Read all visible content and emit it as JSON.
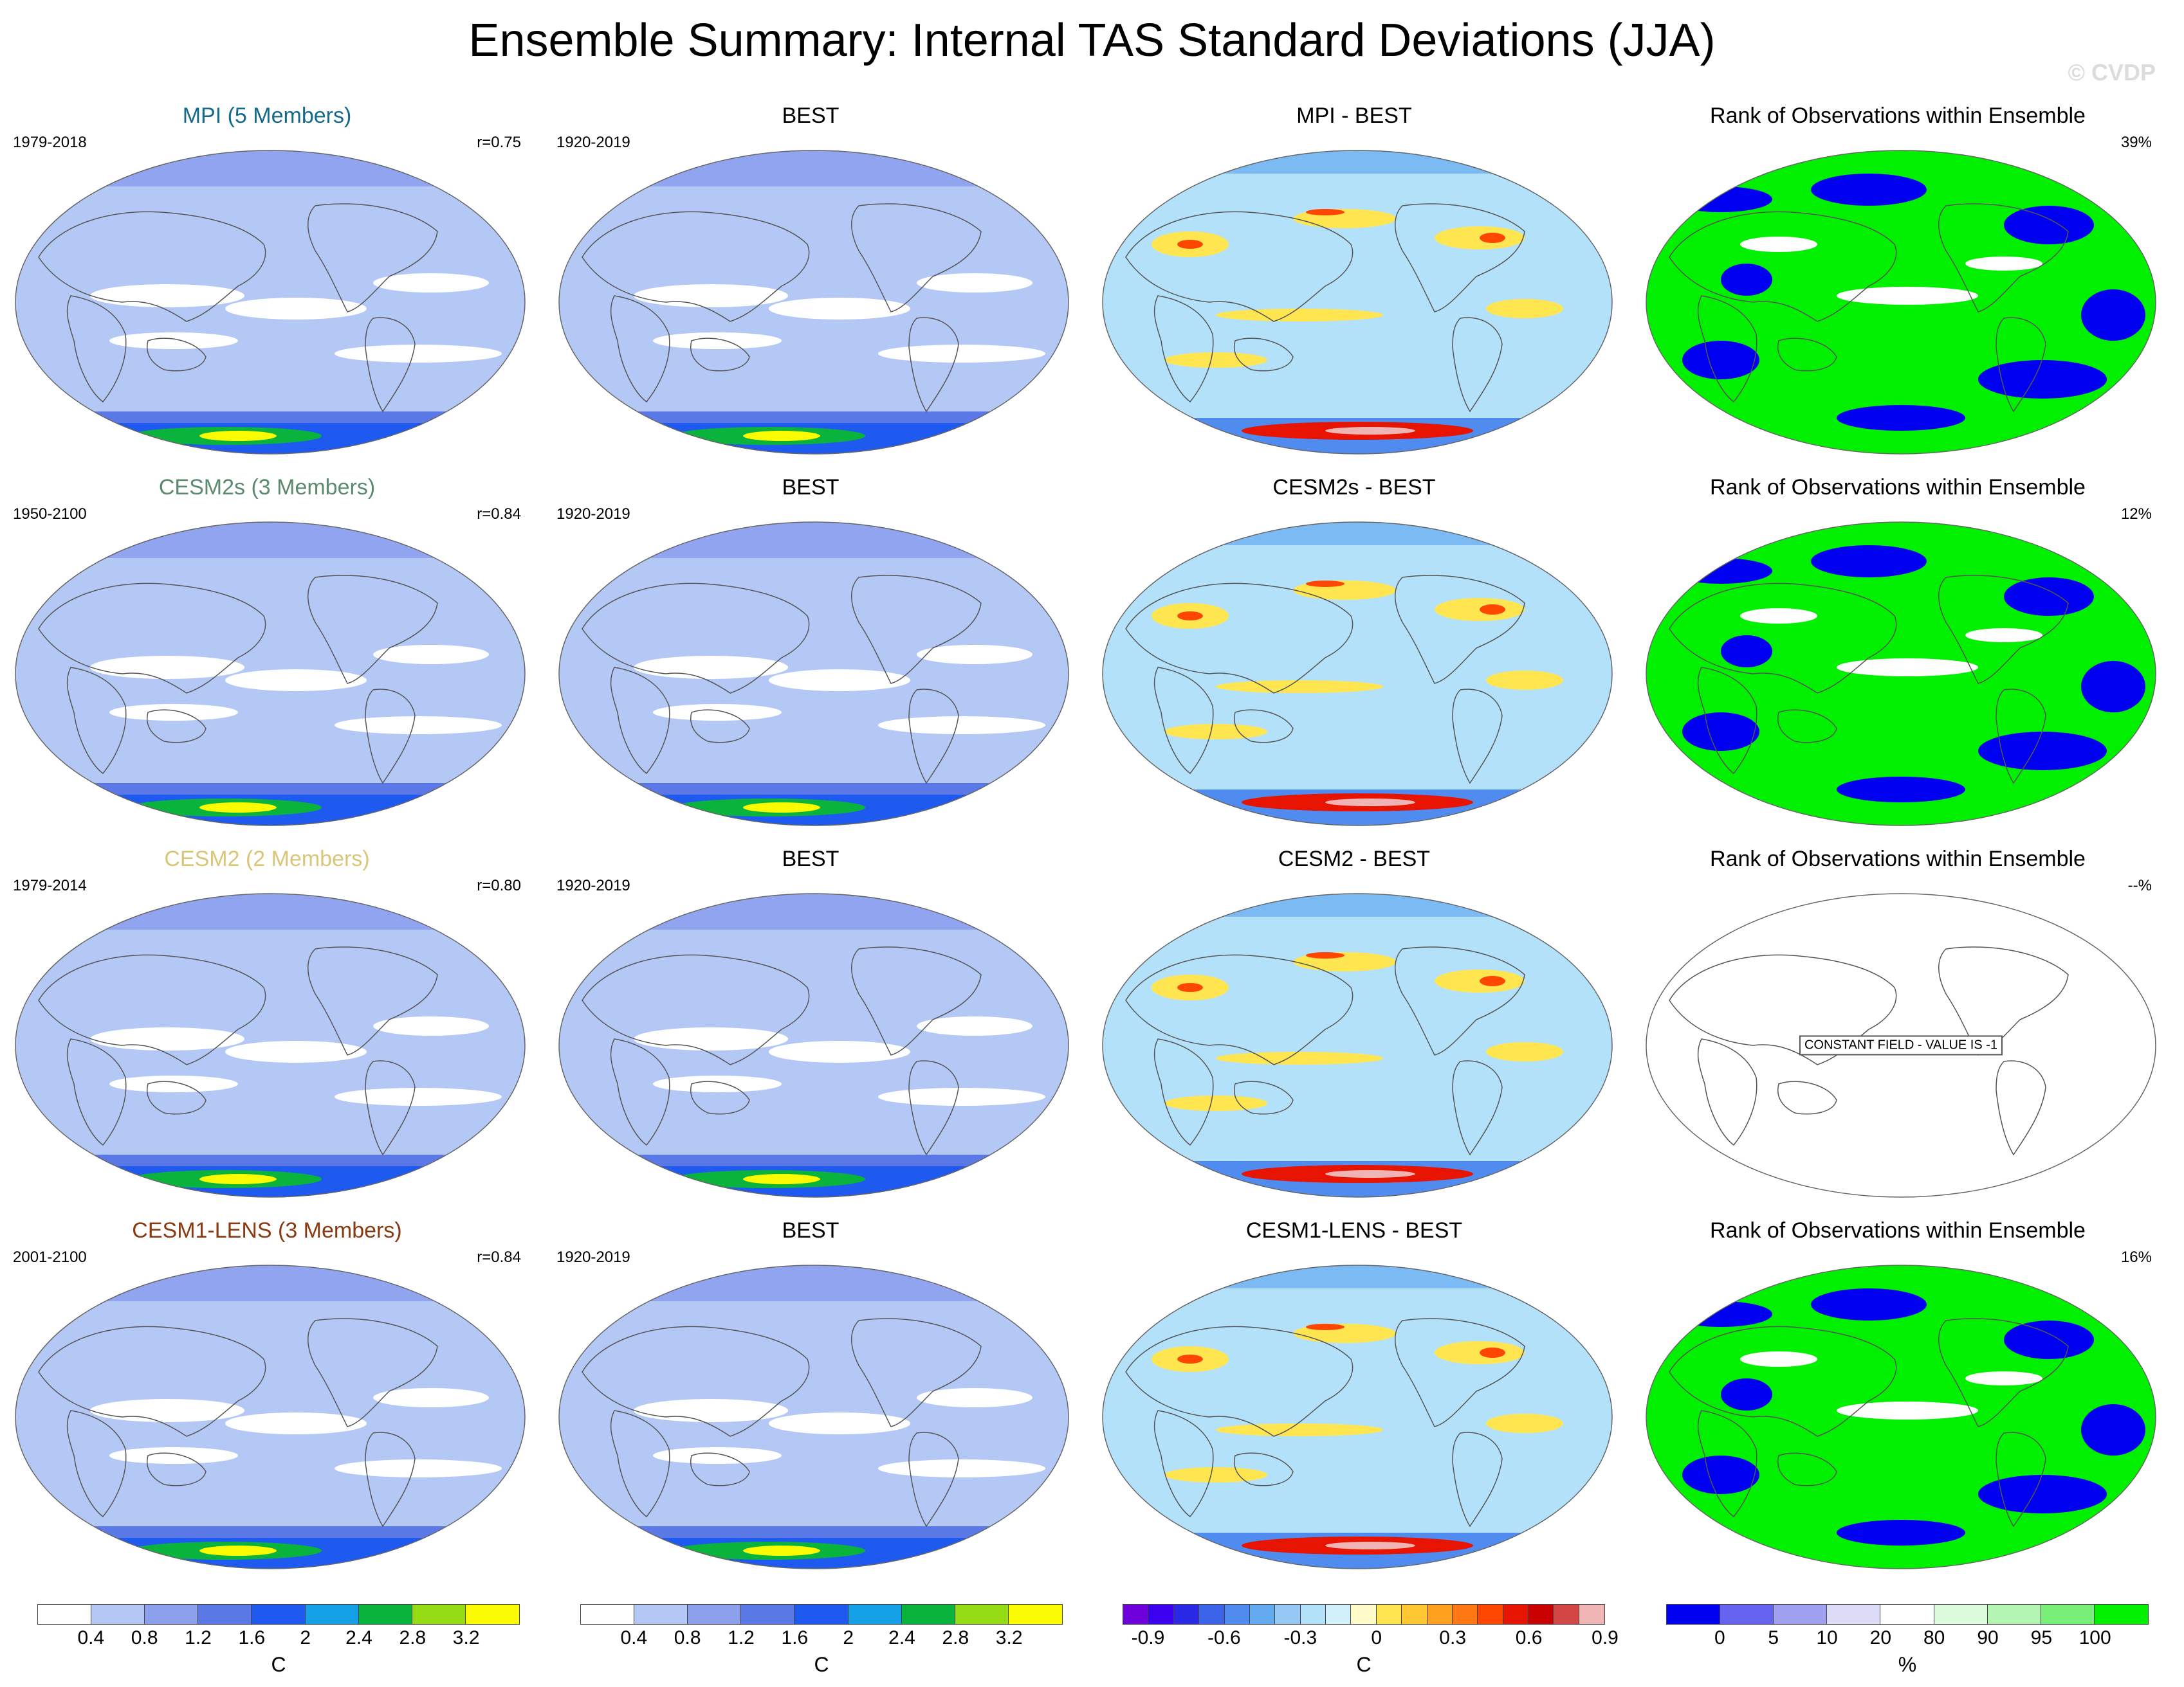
{
  "title": "Ensemble Summary: Internal TAS Standard Deviations (JJA)",
  "watermark": "© CVDP",
  "colors": {
    "std_scale": [
      "#ffffff",
      "#b4c8f5",
      "#8ca0ee",
      "#5a78e6",
      "#1e5af0",
      "#14a0e6",
      "#0ab43c",
      "#96dc14",
      "#fafa00",
      "#ffc814",
      "#ff8c00",
      "#ff2800"
    ],
    "diff_scale": [
      "#6e00dc",
      "#3c00f0",
      "#2828e6",
      "#3c64eb",
      "#508cf0",
      "#64aaf0",
      "#96c8f5",
      "#b4e1fa",
      "#d2f0fa",
      "#fffac8",
      "#ffe650",
      "#ffc832",
      "#ffa01e",
      "#ff7814",
      "#ff4600",
      "#e61400",
      "#c80000",
      "#d24646",
      "#f0b4b4"
    ],
    "rank_scale": [
      "#0000f0",
      "#6464f0",
      "#a0a0f0",
      "#dcdcf8",
      "#ffffff",
      "#dcfadc",
      "#b4f5b4",
      "#78f078",
      "#00f000"
    ]
  },
  "rows": [
    {
      "ens": {
        "title": "MPI (5 Members)",
        "title_color": "#136a8b",
        "years": "1979-2018",
        "r": "r=0.75"
      },
      "obs": {
        "title": "BEST",
        "years": "1920-2019"
      },
      "diff": {
        "title": "MPI - BEST"
      },
      "rank": {
        "title": "Rank of Observations within Ensemble",
        "pct": "39%"
      }
    },
    {
      "ens": {
        "title": "CESM2s (3 Members)",
        "title_color": "#5b8a6e",
        "years": "1950-2100",
        "r": "r=0.84"
      },
      "obs": {
        "title": "BEST",
        "years": "1920-2019"
      },
      "diff": {
        "title": "CESM2s - BEST"
      },
      "rank": {
        "title": "Rank of Observations within Ensemble",
        "pct": "12%"
      }
    },
    {
      "ens": {
        "title": "CESM2 (2 Members)",
        "title_color": "#d9c679",
        "years": "1979-2014",
        "r": "r=0.80"
      },
      "obs": {
        "title": "BEST",
        "years": "1920-2019"
      },
      "diff": {
        "title": "CESM2 - BEST"
      },
      "rank": {
        "title": "Rank of Observations within Ensemble",
        "pct": "--%",
        "constant_note": "CONSTANT FIELD - VALUE IS -1"
      }
    },
    {
      "ens": {
        "title": "CESM1-LENS (3 Members)",
        "title_color": "#8a3a10",
        "years": "2001-2100",
        "r": "r=0.84"
      },
      "obs": {
        "title": "BEST",
        "years": "1920-2019"
      },
      "diff": {
        "title": "CESM1-LENS - BEST"
      },
      "rank": {
        "title": "Rank of Observations within Ensemble",
        "pct": "16%"
      }
    }
  ],
  "colorbars": {
    "std1": {
      "ticks": [
        "0.4",
        "0.8",
        "1.2",
        "1.6",
        "2",
        "2.4",
        "2.8",
        "3.2"
      ],
      "unit": "C"
    },
    "std2": {
      "ticks": [
        "0.4",
        "0.8",
        "1.2",
        "1.6",
        "2",
        "2.4",
        "2.8",
        "3.2"
      ],
      "unit": "C"
    },
    "diff": {
      "ticks": [
        "-0.9",
        "-0.6",
        "-0.3",
        "0",
        "0.3",
        "0.6",
        "0.9"
      ],
      "unit": "C"
    },
    "rank": {
      "ticks": [
        "0",
        "5",
        "10",
        "20",
        "80",
        "90",
        "95",
        "100"
      ],
      "unit": "%"
    }
  }
}
